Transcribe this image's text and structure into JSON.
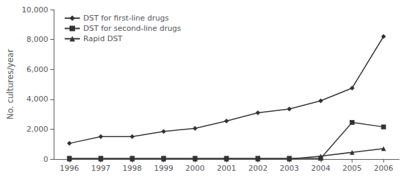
{
  "chart_data": {
    "type": "line",
    "x": [
      1996,
      1997,
      1998,
      1999,
      2000,
      2001,
      2002,
      2003,
      2004,
      2005,
      2006
    ],
    "series": [
      {
        "name": "DST for first-line drugs",
        "color": "#333333",
        "marker": "diamond",
        "values": [
          1050,
          1500,
          1500,
          1850,
          2050,
          2550,
          3100,
          3350,
          3900,
          4750,
          8200
        ]
      },
      {
        "name": "DST for second-line drugs",
        "color": "#333333",
        "marker": "square",
        "values": [
          50,
          50,
          50,
          50,
          50,
          50,
          50,
          50,
          50,
          2450,
          2150
        ]
      },
      {
        "name": "Rapid DST",
        "color": "#333333",
        "marker": "triangle",
        "values": [
          0,
          0,
          0,
          0,
          0,
          0,
          0,
          0,
          200,
          450,
          700
        ]
      }
    ],
    "ylabel": "No. cultures/year",
    "xlim": [
      1995.5,
      2006.5
    ],
    "xticks": [
      1996,
      1997,
      1998,
      1999,
      2000,
      2001,
      2002,
      2003,
      2004,
      2005,
      2006
    ],
    "ylim": [
      0,
      10000
    ],
    "yticks": [
      0,
      {
        "value": 2000,
        "label": "2,000"
      },
      {
        "value": 4000,
        "label": "4,000"
      },
      {
        "value": 6000,
        "label": "6,000"
      },
      {
        "value": 8000,
        "label": "8,000"
      },
      {
        "value": 10000,
        "label": "10,000"
      }
    ],
    "grid": false,
    "legend": "upper left"
  }
}
